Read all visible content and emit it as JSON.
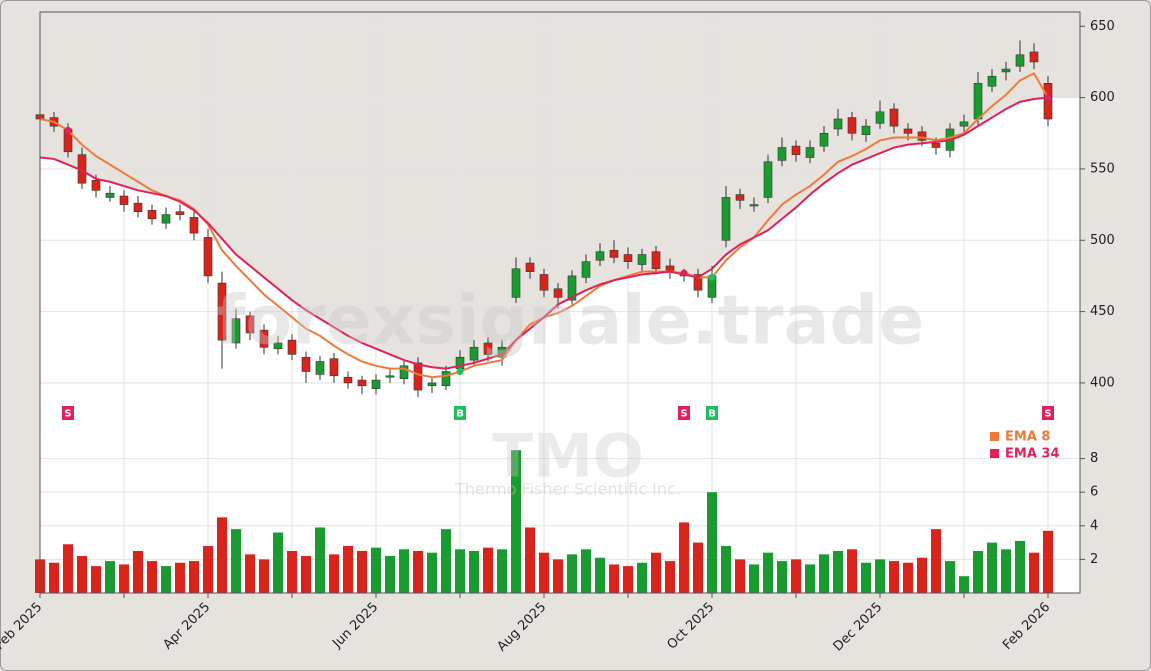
{
  "chart_data": {
    "type": "candlestick",
    "categories": [
      "Feb 2025",
      null,
      null,
      null,
      null,
      null,
      null,
      null,
      null,
      null,
      null,
      null,
      "Apr 2025",
      null,
      null,
      null,
      null,
      null,
      null,
      null,
      null,
      null,
      null,
      null,
      "Jun 2025",
      null,
      null,
      null,
      null,
      null,
      null,
      null,
      null,
      null,
      null,
      null,
      "Aug 2025",
      null,
      null,
      null,
      null,
      null,
      null,
      null,
      null,
      null,
      null,
      null,
      "Oct 2025",
      null,
      null,
      null,
      null,
      null,
      null,
      null,
      null,
      null,
      null,
      null,
      "Dec 2025",
      null,
      null,
      null,
      null,
      null,
      null,
      null,
      null,
      null,
      null,
      null,
      "Feb 2026"
    ],
    "open": [
      588,
      586,
      578,
      560,
      542,
      530,
      531,
      526,
      521,
      512,
      520,
      516,
      502,
      470,
      428,
      447,
      437,
      424,
      430,
      418,
      406,
      417,
      404,
      402,
      396,
      404,
      403,
      414,
      398,
      398,
      410,
      416,
      428,
      418,
      460,
      484,
      476,
      466,
      458,
      474,
      486,
      493,
      490,
      483,
      492,
      482,
      477,
      476,
      460,
      500,
      532,
      524,
      530,
      556,
      566,
      558,
      566,
      578,
      586,
      574,
      582,
      592,
      578,
      576,
      568,
      563,
      580,
      585,
      608,
      618,
      622,
      632,
      610
    ],
    "high": [
      593,
      590,
      582,
      565,
      546,
      538,
      535,
      531,
      525,
      523,
      525,
      521,
      508,
      478,
      452,
      450,
      441,
      433,
      434,
      422,
      419,
      421,
      408,
      405,
      406,
      410,
      416,
      418,
      404,
      412,
      423,
      430,
      432,
      430,
      488,
      488,
      480,
      470,
      479,
      490,
      498,
      500,
      495,
      494,
      496,
      487,
      480,
      480,
      482,
      538,
      536,
      530,
      560,
      572,
      570,
      570,
      580,
      592,
      590,
      585,
      598,
      596,
      582,
      580,
      572,
      582,
      588,
      618,
      620,
      625,
      640,
      638,
      615
    ],
    "low": [
      580,
      576,
      558,
      536,
      530,
      527,
      520,
      516,
      511,
      508,
      514,
      500,
      470,
      410,
      424,
      430,
      420,
      420,
      416,
      400,
      402,
      400,
      396,
      392,
      392,
      400,
      399,
      390,
      393,
      395,
      406,
      412,
      415,
      412,
      456,
      473,
      460,
      452,
      455,
      470,
      482,
      484,
      480,
      478,
      476,
      473,
      471,
      460,
      456,
      495,
      522,
      520,
      526,
      552,
      555,
      554,
      562,
      573,
      570,
      569,
      578,
      575,
      570,
      566,
      560,
      558,
      576,
      580,
      604,
      612,
      618,
      620,
      580
    ],
    "close": [
      585,
      580,
      562,
      540,
      535,
      533,
      525,
      520,
      515,
      518,
      518,
      505,
      475,
      430,
      445,
      435,
      425,
      428,
      420,
      408,
      415,
      405,
      400,
      398,
      402,
      405,
      412,
      395,
      400,
      408,
      418,
      425,
      420,
      425,
      480,
      478,
      465,
      460,
      475,
      485,
      492,
      488,
      485,
      490,
      480,
      478,
      475,
      465,
      475,
      530,
      528,
      525,
      555,
      565,
      560,
      565,
      575,
      585,
      575,
      580,
      590,
      580,
      575,
      570,
      565,
      578,
      583,
      610,
      615,
      620,
      630,
      625,
      585
    ],
    "up_color": "#1a9b2f",
    "down_color": "#d9241c",
    "ylim": [
      367,
      660
    ],
    "yticks": [
      400,
      450,
      500,
      550,
      600,
      650
    ],
    "volume": {
      "values": [
        2.0,
        1.8,
        2.9,
        2.2,
        1.6,
        1.9,
        1.7,
        2.5,
        1.9,
        1.6,
        1.8,
        1.9,
        2.8,
        4.5,
        3.8,
        2.3,
        2.0,
        3.6,
        2.5,
        2.2,
        3.9,
        2.3,
        2.8,
        2.5,
        2.7,
        2.2,
        2.6,
        2.5,
        2.4,
        3.8,
        2.6,
        2.5,
        2.7,
        2.6,
        8.5,
        3.9,
        2.4,
        2.0,
        2.3,
        2.6,
        2.1,
        1.7,
        1.6,
        1.8,
        2.4,
        1.9,
        4.2,
        3.0,
        6.0,
        2.8,
        2.0,
        1.7,
        2.4,
        1.9,
        2.0,
        1.7,
        2.3,
        2.5,
        2.6,
        1.8,
        2.0,
        1.9,
        1.8,
        2.1,
        3.8,
        1.9,
        1.0,
        2.5,
        3.0,
        2.6,
        3.1,
        2.4,
        3.7
      ],
      "ylim": [
        0,
        9.7
      ],
      "yticks": [
        2,
        4,
        6,
        8
      ]
    },
    "series": [
      {
        "name": "EMA 8",
        "color": "#f07a3a",
        "values": [
          585,
          583,
          577,
          567,
          559,
          553,
          547,
          541,
          535,
          531,
          528,
          522,
          511,
          493,
          482,
          472,
          462,
          454,
          446,
          438,
          433,
          426,
          420,
          415,
          412,
          410,
          410,
          406,
          404,
          405,
          408,
          412,
          414,
          416,
          430,
          441,
          446,
          449,
          454,
          461,
          468,
          472,
          475,
          478,
          478,
          478,
          477,
          474,
          474,
          486,
          495,
          502,
          514,
          525,
          532,
          538,
          546,
          555,
          559,
          564,
          570,
          572,
          572,
          572,
          570,
          572,
          575,
          585,
          594,
          602,
          612,
          617,
          600
        ]
      },
      {
        "name": "EMA 34",
        "color": "#e0215a",
        "values": [
          558,
          557,
          553,
          549,
          543,
          541,
          538,
          535,
          533,
          531,
          527,
          521,
          512,
          501,
          490,
          482,
          474,
          466,
          458,
          451,
          445,
          439,
          433,
          428,
          424,
          420,
          416,
          413,
          411,
          410,
          412,
          414,
          417,
          420,
          430,
          438,
          446,
          455,
          460,
          465,
          469,
          472,
          474,
          476,
          477,
          478,
          476,
          474,
          480,
          490,
          497,
          502,
          507,
          515,
          523,
          532,
          540,
          547,
          553,
          557,
          561,
          565,
          567,
          568,
          569,
          570,
          574,
          580,
          586,
          592,
          597,
          599,
          600
        ]
      }
    ],
    "signals": [
      {
        "index": 2,
        "label": "S",
        "color": "#e0215a"
      },
      {
        "index": 30,
        "label": "B",
        "color": "#1fbf5f"
      },
      {
        "index": 46,
        "label": "S",
        "color": "#e0215a"
      },
      {
        "index": 48,
        "label": "B",
        "color": "#1fbf5f"
      },
      {
        "index": 72,
        "label": "S",
        "color": "#e0215a"
      }
    ],
    "watermark": "forexsignale.trade",
    "symbol": "TMO",
    "company": "Thermo Fisher Scientific Inc.",
    "grid": true
  }
}
